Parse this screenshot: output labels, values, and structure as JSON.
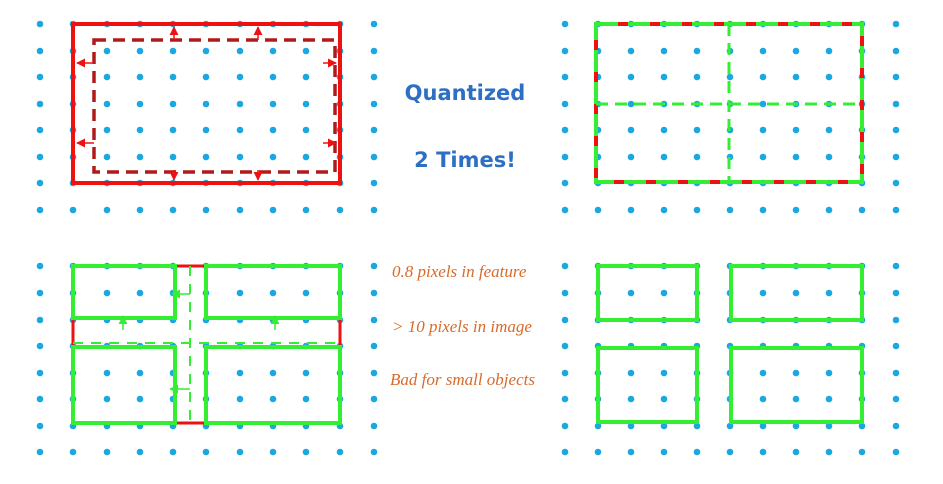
{
  "colors": {
    "dot": "#1ba8e0",
    "red": "#ee1111",
    "dark_red": "#b01a1a",
    "green": "#33ee33",
    "blue_text": "#2e6fc6",
    "orange_text": "#d86a2a"
  },
  "captions": {
    "quantized": "Quantized",
    "two_times": "2 Times!",
    "feature_pixels": "0.8 pixels in feature",
    "image_pixels": "> 10 pixels in image",
    "small_objects": "Bad for small objects"
  },
  "panels": [
    {
      "id": "panel-top-left",
      "description_key": "roi-quantized-to-grid"
    },
    {
      "id": "panel-top-right",
      "description_key": "roi-split-into-bins"
    },
    {
      "id": "panel-bottom-left",
      "description_key": "bins-quantized-again"
    },
    {
      "id": "panel-bottom-right",
      "description_key": "final-quantized-bins"
    }
  ]
}
